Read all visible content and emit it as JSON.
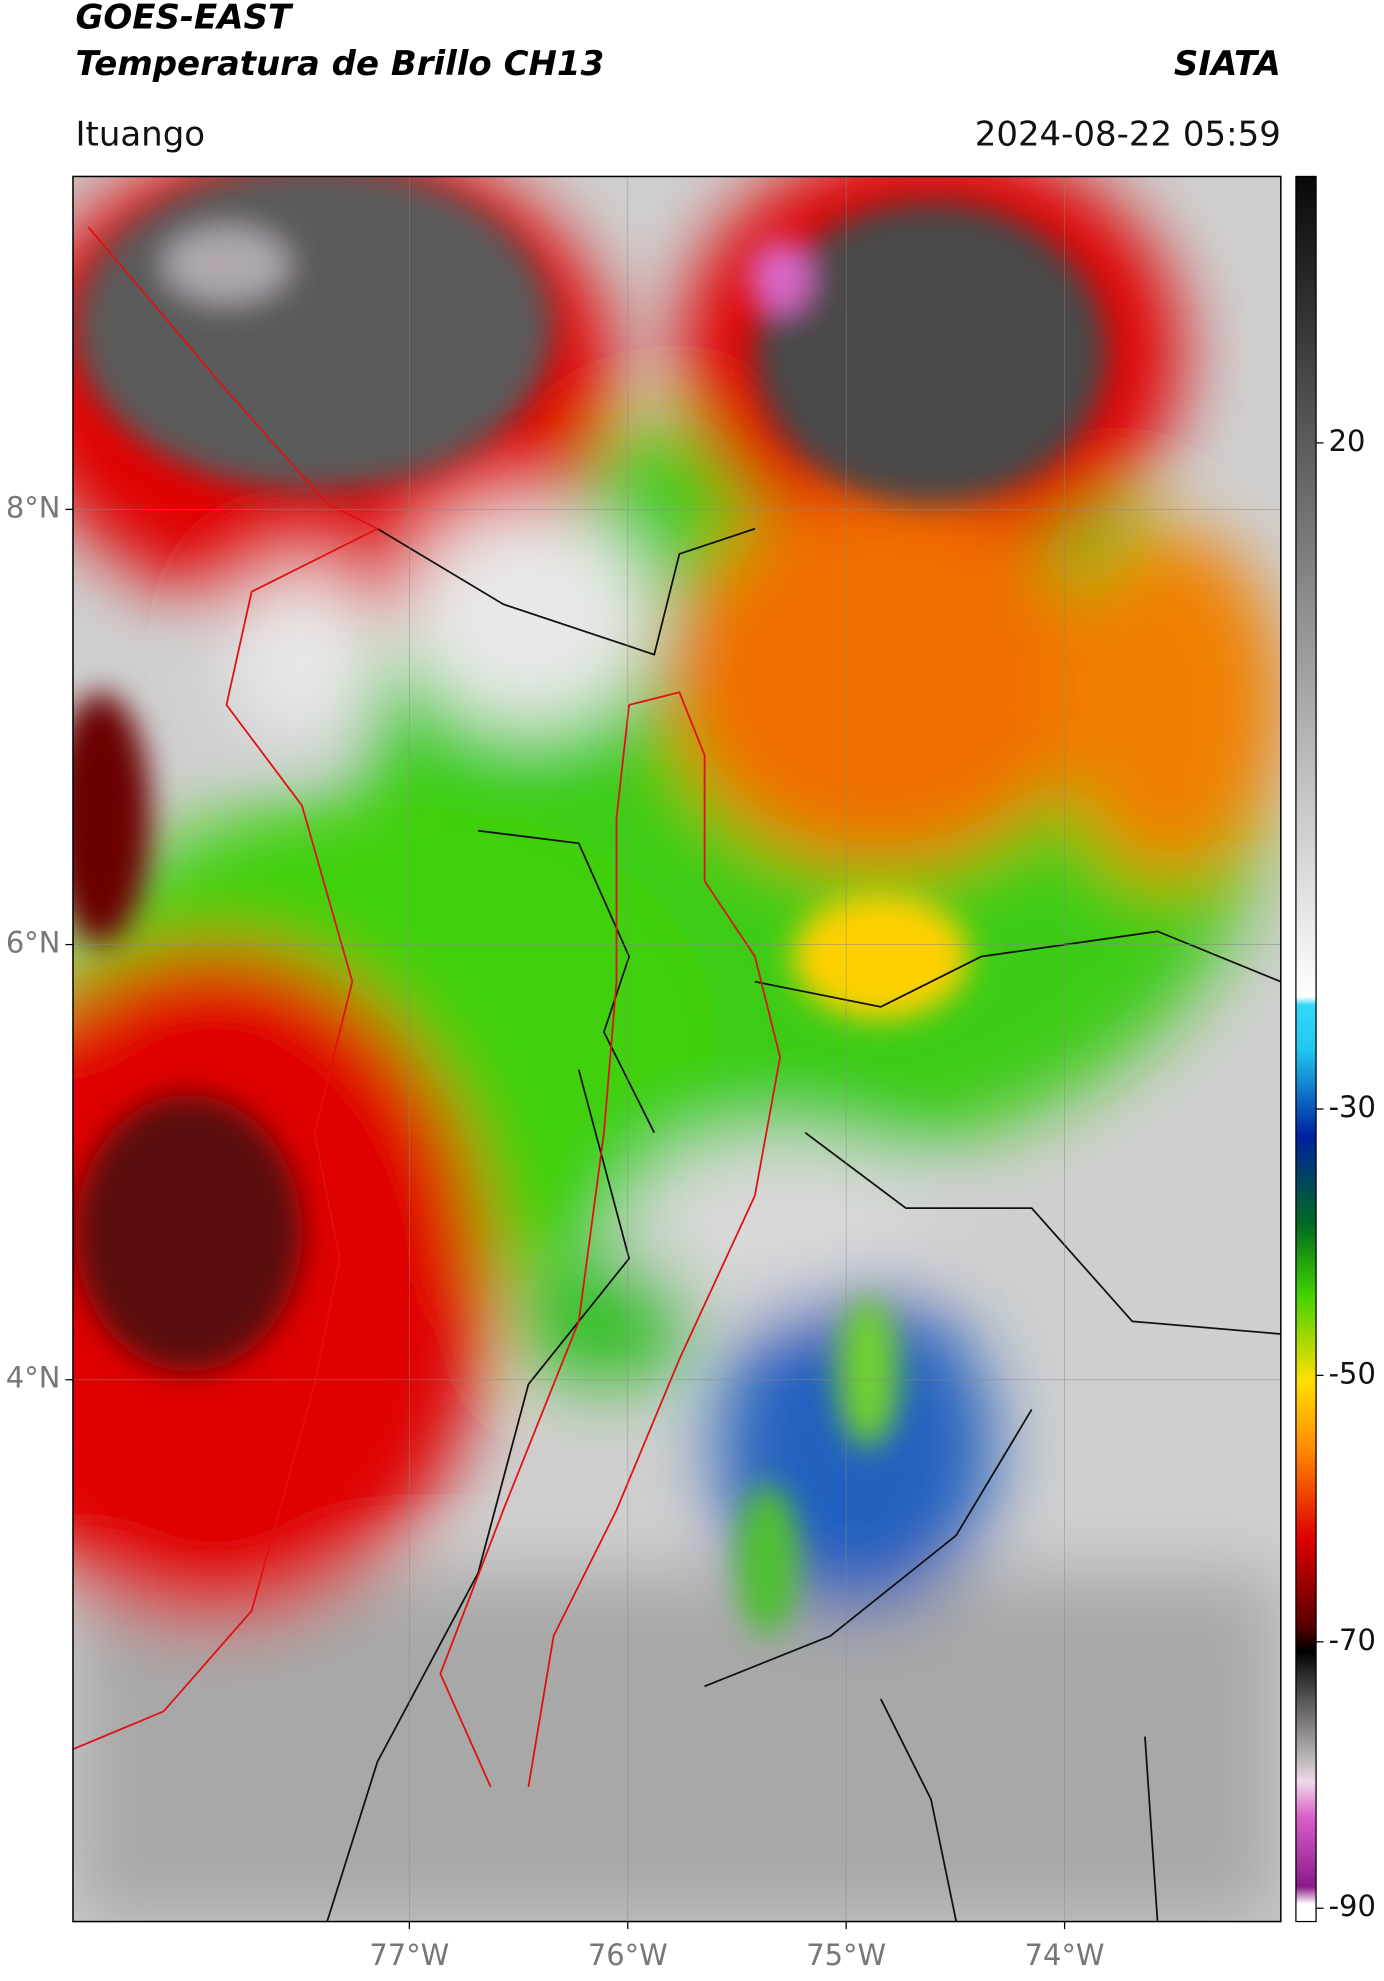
{
  "header": {
    "title_line1": "GOES-EAST",
    "title_line2": "Temperatura de Brillo CH13",
    "organization": "SIATA",
    "location": "Ituango",
    "datetime": "2024-08-22 05:59"
  },
  "map": {
    "xlim": [
      -78.54,
      -73.01
    ],
    "ylim": [
      1.51,
      9.53
    ],
    "xticks": [
      {
        "value": -77,
        "label": "77°W"
      },
      {
        "value": -76,
        "label": "76°W"
      },
      {
        "value": -75,
        "label": "75°W"
      },
      {
        "value": -74,
        "label": "74°W"
      }
    ],
    "yticks": [
      {
        "value": 8,
        "label": "8°N"
      },
      {
        "value": 6,
        "label": "6°N"
      },
      {
        "value": 4,
        "label": "4°N"
      }
    ],
    "grid": true
  },
  "colorbar": {
    "lim": [
      -91,
      40
    ],
    "ticks": [
      20,
      -30,
      -50,
      -70,
      -90
    ]
  }
}
